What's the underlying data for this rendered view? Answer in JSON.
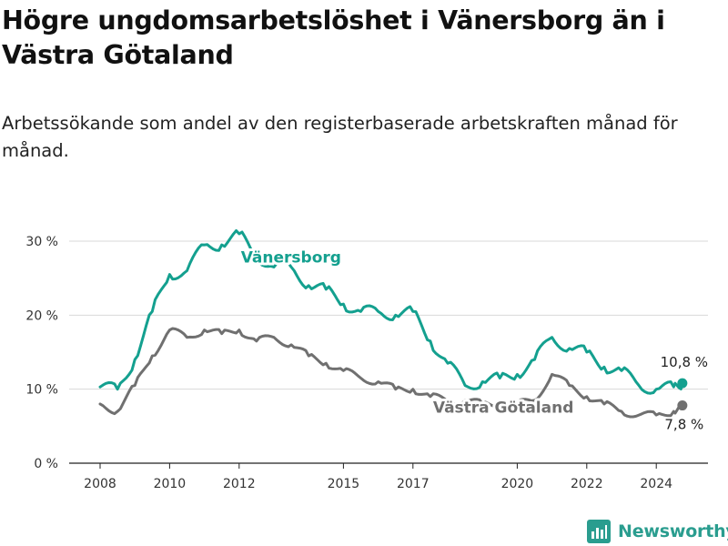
{
  "chart_data": {
    "type": "line",
    "title": "Högre ungdomsarbetslöshet i Vänersborg än i Västra Götaland",
    "subtitle": "Arbetssökande som andel av den registerbaserade arbetskraften månad för månad.",
    "xlabel": "",
    "ylabel": "",
    "ylim": [
      0,
      30
    ],
    "y_ticks": [
      0,
      10,
      20,
      30
    ],
    "y_tick_labels": [
      "0 %",
      "10 %",
      "20 %",
      "30 %"
    ],
    "x_ticks": [
      2008,
      2010,
      2012,
      2015,
      2017,
      2020,
      2022,
      2024
    ],
    "x_tick_labels": [
      "2008",
      "2010",
      "2012",
      "2015",
      "2017",
      "2020",
      "2022",
      "2024"
    ],
    "grid": true,
    "x": [
      2008.0,
      2008.5,
      2009.0,
      2009.5,
      2010.0,
      2010.5,
      2011.0,
      2011.5,
      2012.0,
      2012.5,
      2013.0,
      2013.5,
      2014.0,
      2014.5,
      2015.0,
      2015.5,
      2016.0,
      2016.5,
      2017.0,
      2017.5,
      2018.0,
      2018.5,
      2019.0,
      2019.5,
      2020.0,
      2020.5,
      2021.0,
      2021.5,
      2022.0,
      2022.5,
      2023.0,
      2023.5,
      2024.0,
      2024.5,
      2024.75
    ],
    "series": [
      {
        "name": "Vänersborg",
        "color": "#14a08f",
        "values": [
          10.3,
          10.0,
          14.0,
          20.5,
          25.5,
          26.0,
          29.5,
          29.5,
          31.0,
          28.0,
          26.5,
          26.5,
          24.0,
          23.5,
          21.5,
          20.5,
          20.5,
          20.0,
          20.5,
          16.5,
          13.5,
          10.5,
          11.0,
          11.5,
          12.0,
          14.0,
          17.0,
          15.5,
          15.0,
          13.0,
          12.5,
          10.5,
          10.0,
          10.3,
          10.8
        ],
        "end_label": "10,8 %"
      },
      {
        "name": "Västra Götaland",
        "color": "#707070",
        "values": [
          8.0,
          7.0,
          10.5,
          14.5,
          18.0,
          17.0,
          18.0,
          17.5,
          18.0,
          16.5,
          17.0,
          16.0,
          14.5,
          13.5,
          12.5,
          11.5,
          11.0,
          10.0,
          10.0,
          9.0,
          8.5,
          8.5,
          8.0,
          8.0,
          8.0,
          8.5,
          12.0,
          10.5,
          9.0,
          8.0,
          7.0,
          6.5,
          6.5,
          7.0,
          7.8
        ],
        "end_label": "7,8 %"
      }
    ],
    "annotations": {
      "brand": "Newsworthy"
    }
  }
}
